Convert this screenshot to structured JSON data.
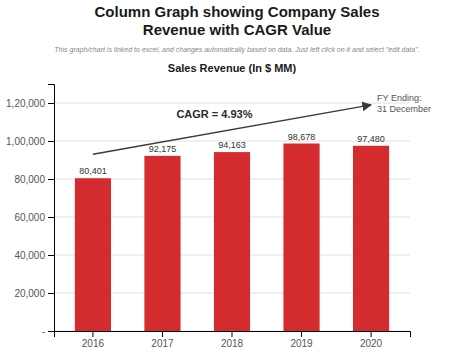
{
  "chart_data": {
    "type": "bar",
    "title": "Column Graph showing Company Sales\nRevenue with CAGR Value",
    "subtitle": "This graph/chart is linked to excel, and changes automatically based on data. Just left click on it and select \"edit data\".",
    "categories": [
      "2016",
      "2017",
      "2018",
      "2019",
      "2020"
    ],
    "values": [
      80401,
      92175,
      94163,
      98678,
      97480
    ],
    "value_labels": [
      "80,401",
      "92,175",
      "94,163",
      "98,678",
      "97,480"
    ],
    "data_labels": true,
    "color": "#D42B2F",
    "ylim": [
      0,
      130000
    ],
    "yticks": [
      {
        "value": 0,
        "label": "-"
      },
      {
        "value": 20000,
        "label": "20,000"
      },
      {
        "value": 40000,
        "label": "40,000"
      },
      {
        "value": 60000,
        "label": "60,000"
      },
      {
        "value": 80000,
        "label": "80,000"
      },
      {
        "value": 100000,
        "label": "1,00,000"
      },
      {
        "value": 120000,
        "label": "1,20,000"
      }
    ],
    "grid": true,
    "annotations": [
      {
        "text": "Sales Revenue (In $ MM)"
      },
      {
        "text": "CAGR = 4.93%",
        "from": {
          "x": "2016",
          "y": 93000
        },
        "to": {
          "x": "2020",
          "y": 119000
        }
      },
      {
        "text": "FY Ending:\n31 December"
      }
    ]
  }
}
